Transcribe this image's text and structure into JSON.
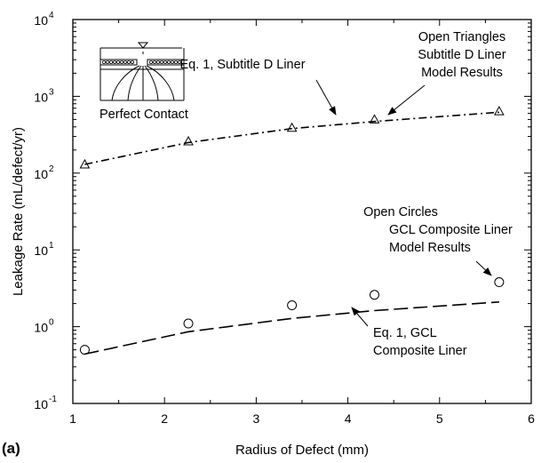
{
  "chart_data": {
    "type": "scatter",
    "panel_label": "(a)",
    "xlabel": "Radius of Defect (mm)",
    "ylabel": "Leakage Rate (mL/defect/yr)",
    "xlim": [
      1,
      6
    ],
    "ylim": [
      0.1,
      10000
    ],
    "yscale": "log",
    "x_ticks": [
      "1",
      "2",
      "3",
      "4",
      "5",
      "6"
    ],
    "y_ticks": [
      {
        "value": 0.1,
        "base": "10",
        "exp": "-1"
      },
      {
        "value": 1,
        "base": "10",
        "exp": "0"
      },
      {
        "value": 10,
        "base": "10",
        "exp": "1"
      },
      {
        "value": 100,
        "base": "10",
        "exp": "2"
      },
      {
        "value": 1000,
        "base": "10",
        "exp": "3"
      },
      {
        "value": 10000,
        "base": "10",
        "exp": "4"
      }
    ],
    "grid": false,
    "series": [
      {
        "role": "model",
        "marker": "triangle",
        "x": [
          1.13,
          2.26,
          3.39,
          4.29,
          5.65
        ],
        "y": [
          130,
          260,
          390,
          500,
          640
        ]
      },
      {
        "role": "equation",
        "style": "dash-dot",
        "x": [
          1.13,
          2.26,
          3.39,
          4.29,
          5.65
        ],
        "y": [
          130,
          250,
          380,
          470,
          620
        ]
      },
      {
        "role": "model",
        "marker": "circle",
        "x": [
          1.13,
          2.26,
          3.39,
          4.29,
          5.65
        ],
        "y": [
          0.5,
          1.1,
          1.9,
          2.6,
          3.8
        ]
      },
      {
        "role": "equation",
        "style": "long-dash",
        "x": [
          1.13,
          2.26,
          3.39,
          4.29,
          5.65
        ],
        "y": [
          0.44,
          0.86,
          1.28,
          1.62,
          2.1
        ]
      }
    ],
    "annotations": {
      "triangles": [
        "Open Triangles",
        "Subtitle D Liner",
        "Model Results"
      ],
      "eq_subtitle_d": "Eq. 1, Subtitle D Liner",
      "circles": [
        "Open Circles",
        "GCL Composite Liner",
        "Model Results"
      ],
      "eq_gcl": [
        "Eq. 1, GCL",
        "Composite Liner"
      ],
      "inset": "Perfect Contact"
    }
  }
}
